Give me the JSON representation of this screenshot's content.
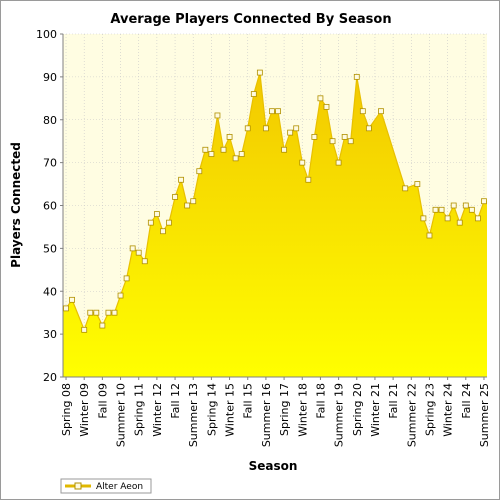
{
  "chart_data": {
    "type": "area",
    "title": "Average Players Connected By Season",
    "xlabel": "Season",
    "ylabel": "Players Connected",
    "ylim": [
      20,
      100
    ],
    "yticks": [
      20,
      30,
      40,
      50,
      60,
      70,
      80,
      90,
      100
    ],
    "grid": true,
    "legend_position": "bottom-left",
    "fill_color_top": "#f2c800",
    "fill_color_bottom": "#ffff00",
    "plot_background": "#fffde2",
    "categories": [
      "Spring 08",
      "Summer 08",
      "Fall 08",
      "Winter 09",
      "Spring 09",
      "Summer 09",
      "Fall 09",
      "Winter 10",
      "Spring 10",
      "Summer 10",
      "Fall 10",
      "Winter 11",
      "Spring 11",
      "Summer 11",
      "Fall 11",
      "Winter 12",
      "Spring 12",
      "Summer 12",
      "Fall 12",
      "Winter 13",
      "Spring 13",
      "Summer 13",
      "Fall 13",
      "Winter 14",
      "Spring 14",
      "Summer 14",
      "Fall 14",
      "Winter 15",
      "Spring 15",
      "Summer 15",
      "Fall 15",
      "Winter 16",
      "Spring 16",
      "Summer 16",
      "Fall 16",
      "Winter 17",
      "Spring 17",
      "Summer 17",
      "Fall 17",
      "Winter 18",
      "Spring 18",
      "Summer 18",
      "Fall 18",
      "Winter 19",
      "Spring 19",
      "Summer 19",
      "Fall 19",
      "Winter 20",
      "Spring 20",
      "Summer 20",
      "Fall 20",
      "Winter 21",
      "Spring 21",
      "Summer 21",
      "Fall 21",
      "Winter 22",
      "Spring 22",
      "Summer 22",
      "Fall 22",
      "Winter 23",
      "Spring 23",
      "Summer 23",
      "Fall 23",
      "Winter 24",
      "Spring 24",
      "Summer 24",
      "Fall 24",
      "Winter 25",
      "Spring 25",
      "Summer 25"
    ],
    "tick_labels_shown": [
      "Spring 08",
      "Winter 09",
      "Fall 09",
      "Summer 10",
      "Spring 11",
      "Winter 12",
      "Fall 12",
      "Summer 13",
      "Spring 14",
      "Winter 15",
      "Fall 15",
      "Summer 16",
      "Spring 17",
      "Winter 18",
      "Fall 18",
      "Summer 19",
      "Spring 20",
      "Winter 21",
      "Fall 21",
      "Summer 22",
      "Spring 23",
      "Winter 24",
      "Fall 24",
      "Summer 25"
    ],
    "series": [
      {
        "name": "Alter Aeon",
        "values": [
          36,
          38,
          null,
          31,
          35,
          35,
          32,
          35,
          35,
          39,
          43,
          50,
          49,
          47,
          56,
          58,
          54,
          56,
          62,
          66,
          60,
          61,
          68,
          73,
          72,
          81,
          73,
          76,
          71,
          72,
          78,
          86,
          91,
          78,
          82,
          82,
          73,
          77,
          78,
          70,
          66,
          76,
          85,
          83,
          75,
          70,
          76,
          75,
          90,
          82,
          78,
          null,
          82,
          null,
          null,
          null,
          64,
          null,
          65,
          57,
          53,
          59,
          59,
          57,
          60,
          56,
          60,
          59,
          57,
          61
        ]
      }
    ]
  }
}
